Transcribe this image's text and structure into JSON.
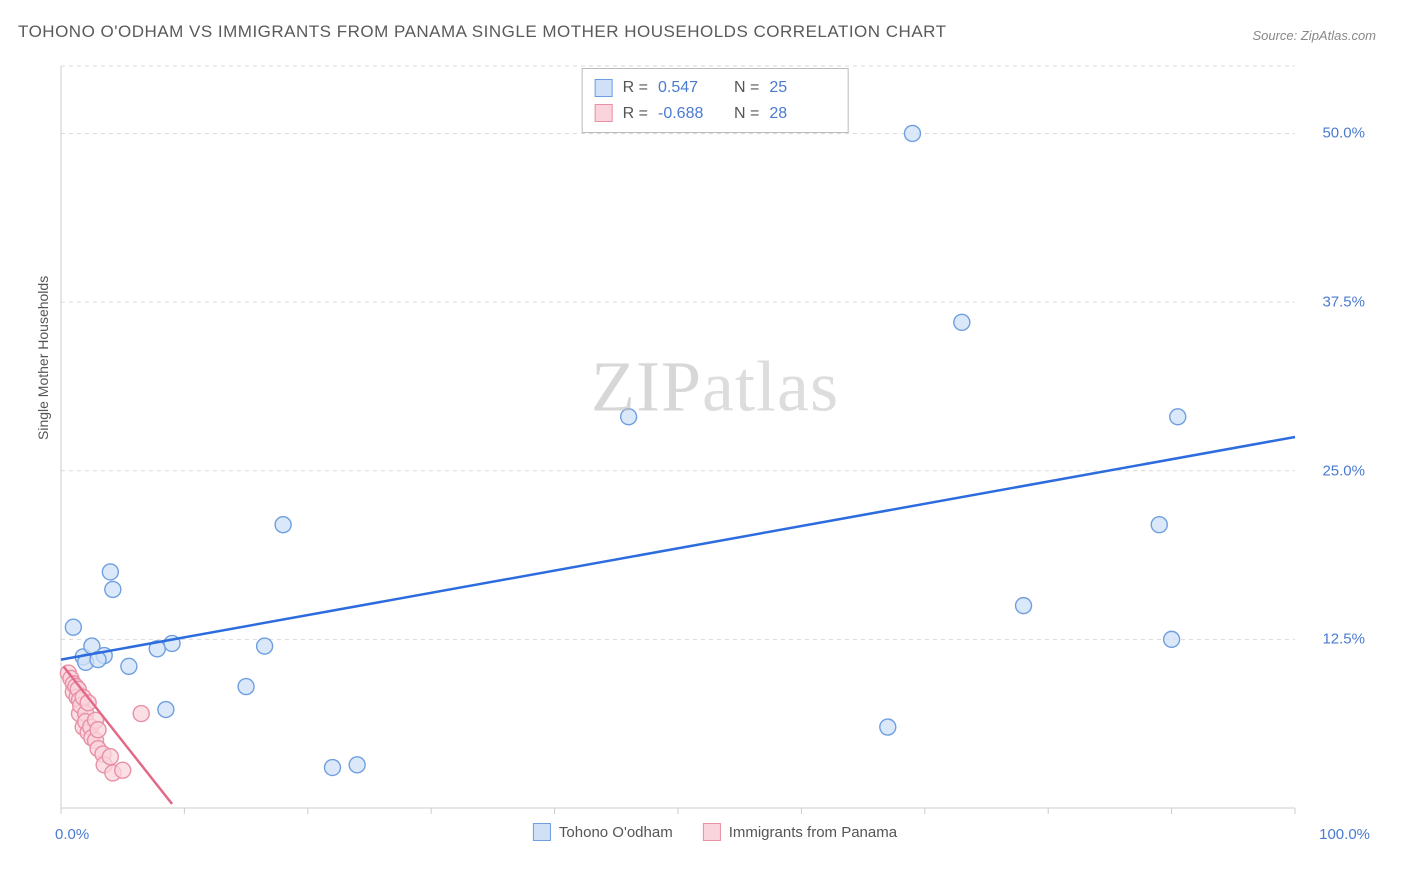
{
  "title": "TOHONO O'ODHAM VS IMMIGRANTS FROM PANAMA SINGLE MOTHER HOUSEHOLDS CORRELATION CHART",
  "source": "Source: ZipAtlas.com",
  "ylabel": "Single Mother Households",
  "watermark_a": "ZIP",
  "watermark_b": "atlas",
  "chart": {
    "type": "scatter",
    "xlim": [
      0,
      100
    ],
    "ylim": [
      0,
      55
    ],
    "x_ticks": [
      0,
      10,
      20,
      30,
      40,
      50,
      60,
      70,
      80,
      90,
      100
    ],
    "y_gridlines": [
      12.5,
      25.0,
      37.5,
      50.0
    ],
    "y_tick_labels": [
      "12.5%",
      "25.0%",
      "37.5%",
      "50.0%"
    ],
    "x_left_label": "0.0%",
    "x_right_label": "100.0%",
    "background_color": "#ffffff",
    "grid_color": "#d9d9d9",
    "axis_color": "#cccccc",
    "marker_radius": 8,
    "marker_stroke_width": 1.4,
    "trend_stroke_width": 2.5
  },
  "stats": [
    {
      "r_label": "R =",
      "r": "0.547",
      "n_label": "N =",
      "n": "25",
      "swatch_fill": "#cfe0f7",
      "swatch_border": "#6f9fe0"
    },
    {
      "r_label": "R =",
      "r": "-0.688",
      "n_label": "N =",
      "n": "28",
      "swatch_fill": "#f9d4dc",
      "swatch_border": "#e890a5"
    }
  ],
  "series": [
    {
      "name": "Tohono O'odham",
      "fill": "#cfe0f7",
      "stroke": "#6f9fe0",
      "trend_color": "#2d6cdf",
      "trend": {
        "x1": 0,
        "y1": 11.0,
        "x2": 100,
        "y2": 27.5
      },
      "points": [
        [
          1.0,
          13.4
        ],
        [
          1.8,
          11.2
        ],
        [
          2.0,
          10.8
        ],
        [
          2.5,
          12.0
        ],
        [
          3.5,
          11.3
        ],
        [
          3.0,
          11.0
        ],
        [
          4.0,
          17.5
        ],
        [
          4.2,
          16.2
        ],
        [
          5.5,
          10.5
        ],
        [
          7.8,
          11.8
        ],
        [
          8.5,
          7.3
        ],
        [
          9.0,
          12.2
        ],
        [
          15.0,
          9.0
        ],
        [
          16.5,
          12.0
        ],
        [
          18.0,
          21.0
        ],
        [
          22.0,
          3.0
        ],
        [
          24.0,
          3.2
        ],
        [
          46.0,
          29.0
        ],
        [
          67.0,
          6.0
        ],
        [
          69.0,
          50.0
        ],
        [
          73.0,
          36.0
        ],
        [
          78.0,
          15.0
        ],
        [
          89.0,
          21.0
        ],
        [
          90.0,
          12.5
        ],
        [
          90.5,
          29.0
        ]
      ]
    },
    {
      "name": "Immigrants from Panama",
      "fill": "#f9d4dc",
      "stroke": "#e890a5",
      "trend_color": "#e26a87",
      "trend": {
        "x1": 0.2,
        "y1": 10.5,
        "x2": 9.0,
        "y2": 0.3
      },
      "points": [
        [
          0.6,
          10.0
        ],
        [
          0.8,
          9.6
        ],
        [
          1.0,
          9.2
        ],
        [
          1.0,
          8.6
        ],
        [
          1.2,
          9.0
        ],
        [
          1.3,
          8.2
        ],
        [
          1.4,
          8.8
        ],
        [
          1.5,
          8.0
        ],
        [
          1.5,
          7.0
        ],
        [
          1.6,
          7.6
        ],
        [
          1.8,
          8.2
        ],
        [
          1.8,
          6.0
        ],
        [
          2.0,
          7.0
        ],
        [
          2.0,
          6.4
        ],
        [
          2.2,
          5.6
        ],
        [
          2.2,
          7.8
        ],
        [
          2.4,
          6.0
        ],
        [
          2.5,
          5.2
        ],
        [
          2.8,
          6.5
        ],
        [
          2.8,
          5.0
        ],
        [
          3.0,
          4.4
        ],
        [
          3.0,
          5.8
        ],
        [
          3.4,
          4.0
        ],
        [
          3.5,
          3.2
        ],
        [
          4.0,
          3.8
        ],
        [
          4.2,
          2.6
        ],
        [
          5.0,
          2.8
        ],
        [
          6.5,
          7.0
        ]
      ]
    }
  ],
  "legend_series": [
    {
      "label": "Tohono O'odham",
      "fill": "#cfe0f7",
      "border": "#6f9fe0"
    },
    {
      "label": "Immigrants from Panama",
      "fill": "#f9d4dc",
      "border": "#e890a5"
    }
  ]
}
